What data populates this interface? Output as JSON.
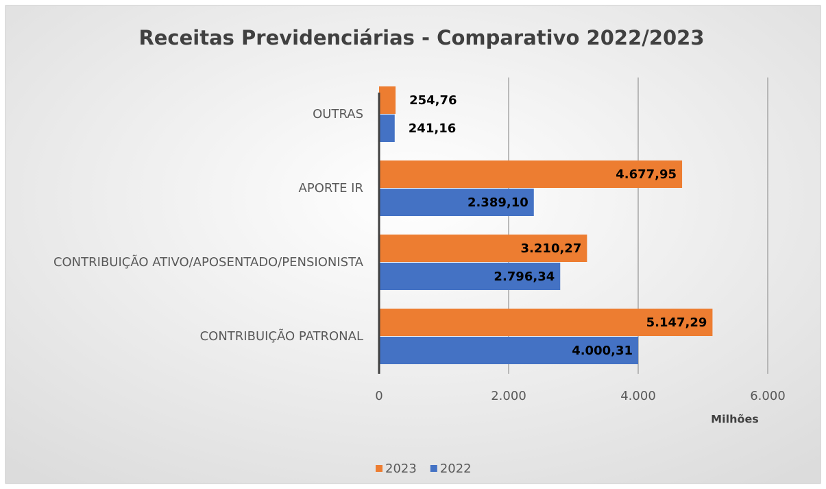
{
  "chart_data": {
    "type": "hbar",
    "title": "Receitas Previdenciárias - Comparativo 2022/2023",
    "x_label": "Milhões",
    "categories": [
      "OUTRAS",
      "APORTE IR",
      "CONTRIBUIÇÃO ATIVO/APOSENTADO/PENSIONISTA",
      "CONTRIBUIÇÃO PATRONAL"
    ],
    "series": [
      {
        "name": "2023",
        "color": "#ed7d31",
        "values": [
          254.76,
          4677.95,
          3210.27,
          5147.29
        ],
        "value_labels": [
          "254,76",
          "4.677,95",
          "3.210,27",
          "5.147,29"
        ]
      },
      {
        "name": "2022",
        "color": "#4472c4",
        "values": [
          241.16,
          2389.1,
          2796.34,
          4000.31
        ],
        "value_labels": [
          "241,16",
          "2.389,10",
          "2.796,34",
          "4.000,31"
        ]
      }
    ],
    "xlim": [
      0,
      6000
    ],
    "xticks": [
      0,
      {
        "value": 2000,
        "label": "2.000"
      },
      {
        "value": 4000,
        "label": "4.000"
      },
      {
        "value": 6000,
        "label": "6.000"
      }
    ],
    "grid": true,
    "legend": "bottom"
  }
}
